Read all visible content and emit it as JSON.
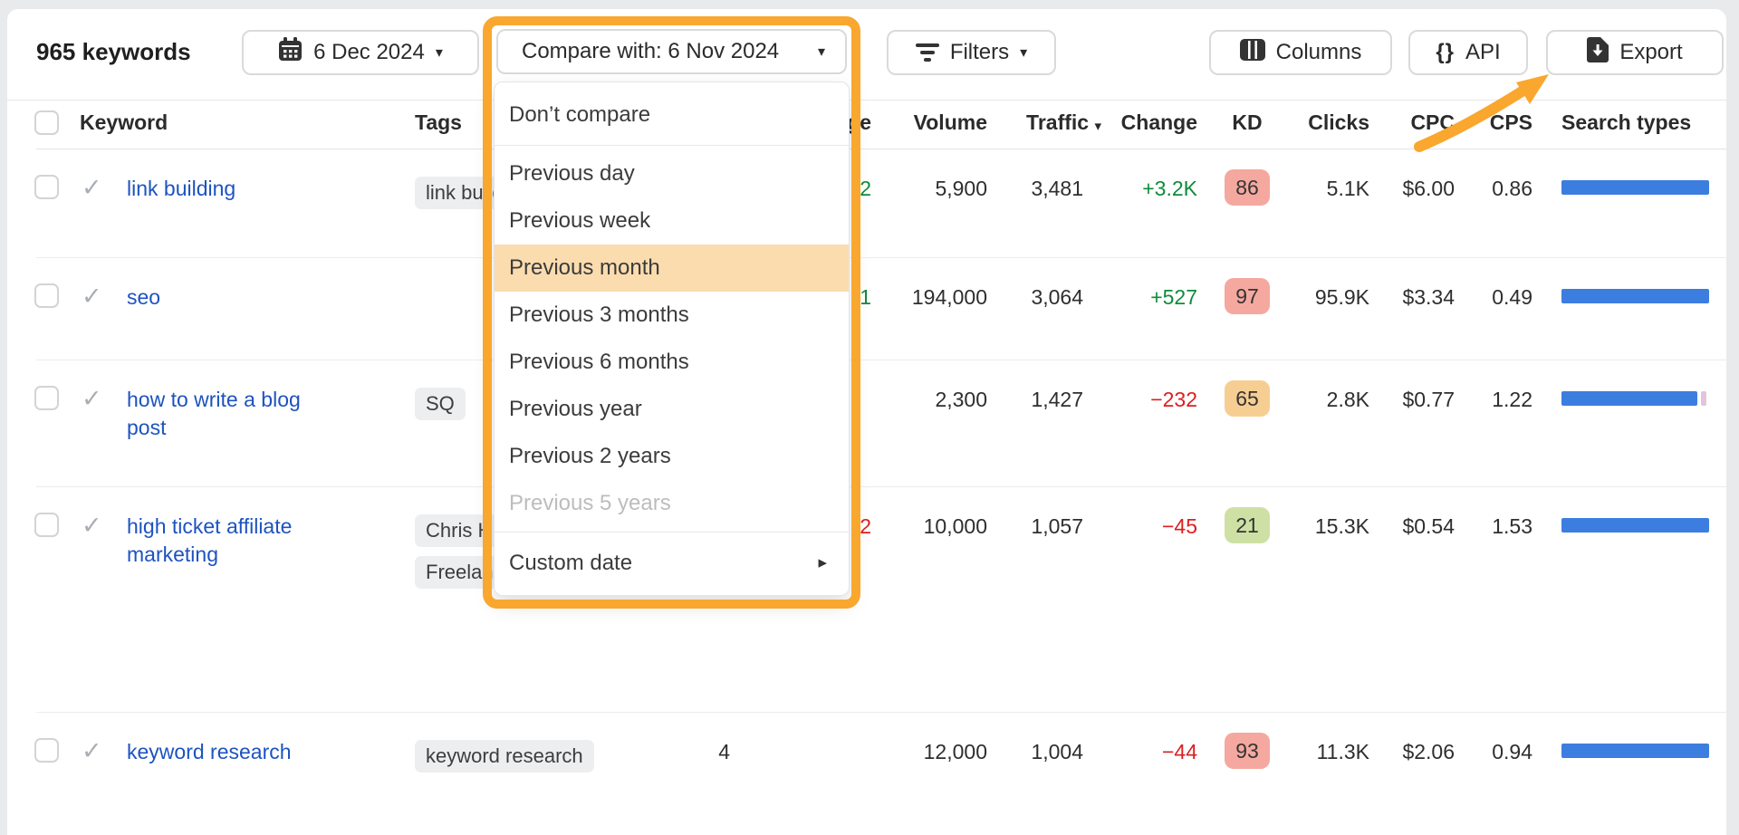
{
  "toolbar": {
    "keywords_count": "965 keywords",
    "date_button": "6 Dec 2024",
    "compare_button": "Compare with: 6 Nov 2024",
    "filters_label": "Filters",
    "columns_label": "Columns",
    "api_label": "API",
    "export_label": "Export"
  },
  "dropdown": {
    "items": [
      {
        "label": "Don’t compare",
        "divider_after": true
      },
      {
        "label": "Previous day"
      },
      {
        "label": "Previous week"
      },
      {
        "label": "Previous month",
        "selected": true
      },
      {
        "label": "Previous 3 months"
      },
      {
        "label": "Previous 6 months"
      },
      {
        "label": "Previous year"
      },
      {
        "label": "Previous 2 years"
      },
      {
        "label": "Previous 5 years",
        "disabled": true,
        "divider_after": true
      },
      {
        "label": "Custom date",
        "submenu": true
      }
    ]
  },
  "table": {
    "headers": {
      "keyword": "Keyword",
      "tags": "Tags",
      "position": "",
      "pos_change": "Change",
      "volume": "Volume",
      "traffic": "Traffic",
      "change": "Change",
      "kd": "KD",
      "clicks": "Clicks",
      "cpc": "CPC",
      "cps": "CPS",
      "search_types": "Search types"
    },
    "rows": [
      {
        "keyword": "link building",
        "tags": [
          "link building"
        ],
        "position": "",
        "pos_change": {
          "text": "2",
          "color": "green"
        },
        "volume": "5,900",
        "traffic": "3,481",
        "change": {
          "text": "+3.2K",
          "color": "green"
        },
        "kd": {
          "value": "86",
          "color": "red"
        },
        "clicks": "5.1K",
        "cpc": "$6.00",
        "cps": "0.86",
        "search_types": [
          {
            "color": "blue",
            "pct": 100
          }
        ]
      },
      {
        "keyword": "seo",
        "tags": [],
        "position": "",
        "pos_change": {
          "text": "1",
          "color": "green"
        },
        "volume": "194,000",
        "traffic": "3,064",
        "change": {
          "text": "+527",
          "color": "green"
        },
        "kd": {
          "value": "97",
          "color": "red"
        },
        "clicks": "95.9K",
        "cpc": "$3.34",
        "cps": "0.49",
        "search_types": [
          {
            "color": "blue",
            "pct": 100
          }
        ]
      },
      {
        "keyword": "how to write a blog post",
        "tags": [
          "SQ"
        ],
        "position": "",
        "pos_change": {
          "text": "",
          "color": ""
        },
        "volume": "2,300",
        "traffic": "1,427",
        "change": {
          "text": "−232",
          "color": "red"
        },
        "kd": {
          "value": "65",
          "color": "orange"
        },
        "clicks": "2.8K",
        "cpc": "$0.77",
        "cps": "1.22",
        "search_types": [
          {
            "color": "blue",
            "pct": 92
          },
          {
            "color": "pink",
            "pct": 4
          }
        ]
      },
      {
        "keyword": "high ticket affiliate marketing",
        "tags": [
          "Chris H",
          "Freelan"
        ],
        "position": "",
        "pos_change": {
          "text": "2",
          "color": "red"
        },
        "volume": "10,000",
        "traffic": "1,057",
        "change": {
          "text": "−45",
          "color": "red"
        },
        "kd": {
          "value": "21",
          "color": "green"
        },
        "clicks": "15.3K",
        "cpc": "$0.54",
        "cps": "1.53",
        "search_types": [
          {
            "color": "blue",
            "pct": 100
          }
        ]
      },
      {
        "keyword": "keyword research",
        "tags": [
          "keyword research"
        ],
        "position": "4",
        "pos_change": {
          "text": "",
          "color": ""
        },
        "volume": "12,000",
        "traffic": "1,004",
        "change": {
          "text": "−44",
          "color": "red"
        },
        "kd": {
          "value": "93",
          "color": "red"
        },
        "clicks": "11.3K",
        "cpc": "$2.06",
        "cps": "0.94",
        "search_types": [
          {
            "color": "blue",
            "pct": 100
          }
        ]
      }
    ]
  },
  "icons": {
    "caret_down": "▾",
    "submenu_right": "▸",
    "check": "✓",
    "braces": "{}"
  },
  "colors": {
    "accent": "#F9A72E",
    "dd_highlight": "#FBDCAE",
    "link": "#1D53C0",
    "green": "#0E8C3A",
    "red": "#DC1F1F",
    "kd_red": "#F5A89F",
    "kd_orange": "#F7CE92",
    "kd_green": "#CFE0A5",
    "bar_blue": "#3C7EDF",
    "bar_pink": "#E3C4DC"
  }
}
